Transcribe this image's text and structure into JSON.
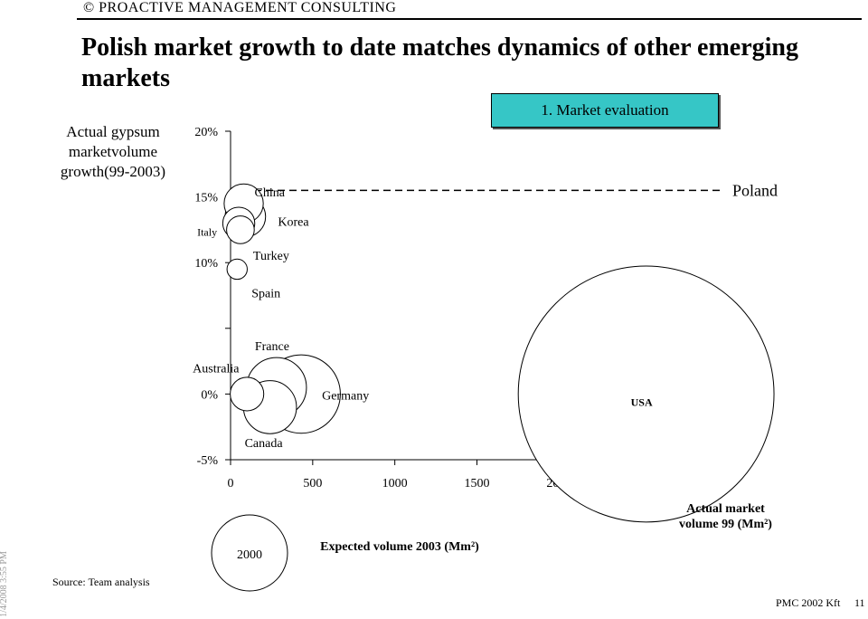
{
  "header": {
    "brand": "© PROACTIVE MANAGEMENT CONSULTING"
  },
  "slide": {
    "title": "Polish market growth to date matches dynamics of other emerging markets",
    "badge": "1. Market evaluation",
    "source": "Source: Team analysis",
    "date": "1/4/2008 3:55 PM",
    "footer": "PMC 2002 Kft",
    "page": "11"
  },
  "chart_data": {
    "type": "scatter",
    "ylabel": "Actual gypsum marketvolume growth(99-2003)",
    "xlabel": "Actual market volume 99 (Mm²)",
    "size_label": "Expected volume 2003 (Mm²)",
    "size_legend_value": "2000",
    "xlim": [
      0,
      3000
    ],
    "ylim": [
      -5,
      20
    ],
    "x_ticks": [
      "0",
      "500",
      "1000",
      "1500",
      "2000",
      "2500",
      "3000"
    ],
    "y_ticks": [
      {
        "label": "20%",
        "value": 20
      },
      {
        "label": "15%",
        "value": 15
      },
      {
        "label": "10%",
        "value": 10
      },
      {
        "label": "",
        "value": 5
      },
      {
        "label": "0%",
        "value": 0
      },
      {
        "label": "-5%",
        "value": -5
      }
    ],
    "reference_line": {
      "label": "Poland",
      "y": 15.5
    },
    "points": [
      {
        "name": "China",
        "x": 80,
        "y": 14.5,
        "size": 300
      },
      {
        "name": "Korea",
        "x": 90,
        "y": 13.5,
        "size": 320
      },
      {
        "name": "Italy",
        "x": 50,
        "y": 13,
        "size": 200
      },
      {
        "name": "Turkey",
        "x": 60,
        "y": 12.5,
        "size": 150
      },
      {
        "name": "Spain",
        "x": 40,
        "y": 9.5,
        "size": 80
      },
      {
        "name": "Australia",
        "x": 100,
        "y": 0,
        "size": 220
      },
      {
        "name": "France",
        "x": 280,
        "y": 0.5,
        "size": 700
      },
      {
        "name": "Germany",
        "x": 430,
        "y": 0,
        "size": 1200
      },
      {
        "name": "Canada",
        "x": 240,
        "y": -1,
        "size": 550
      },
      {
        "name": "USA",
        "x": 2530,
        "y": 0,
        "size": 12800
      }
    ]
  }
}
